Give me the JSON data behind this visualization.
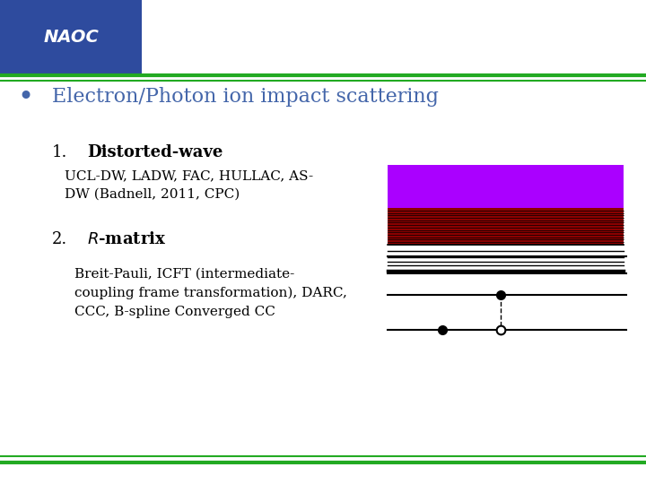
{
  "bg_color": "#ffffff",
  "header_bg": "#2e4b9e",
  "green_line_color": "#22aa22",
  "title_color": "#4466aa",
  "title_text": "Electron/Photon ion impact scattering",
  "body_text_color": "#000000",
  "section1_title": "Distorted-wave",
  "section1_body": "UCL-DW, LADW, FAC, HULLAC, AS-\nDW (Badnell, 2011, CPC)",
  "section2_title": "R-matrix",
  "section2_body": "Breit-Pauli, ICFT (intermediate-\ncoupling frame transformation), DARC,\nCCC, B-spline Converged CC",
  "purple_color": "#aa00ff",
  "dark_red_color": "#8b0000",
  "naoc_bg": "#2e4b9e"
}
